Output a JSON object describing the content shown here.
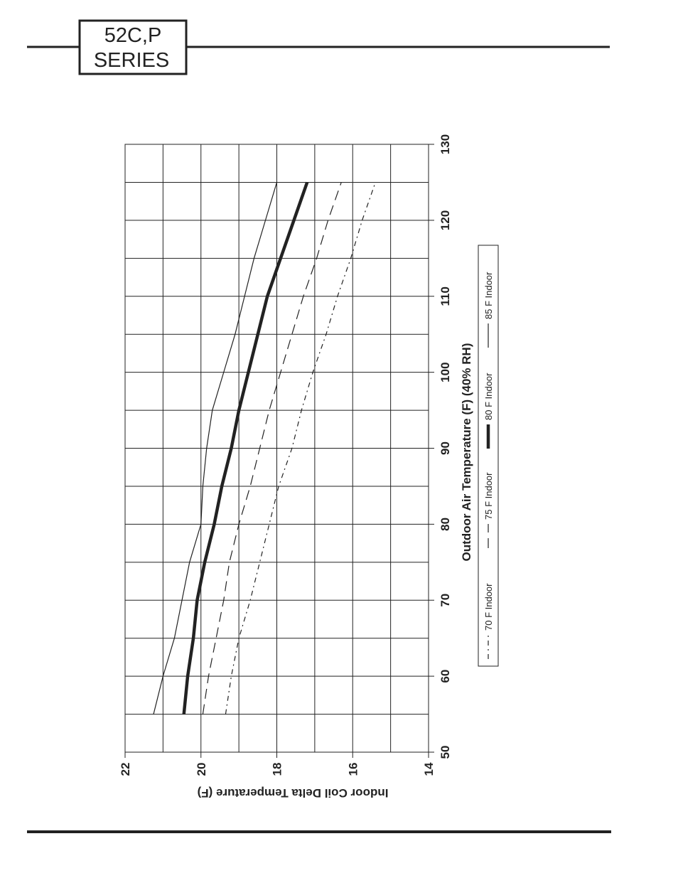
{
  "header": {
    "series_line1": "52C,P",
    "series_line2": "SERIES"
  },
  "chart_data": {
    "type": "line",
    "xlabel": "Outdoor Air Temperature (F) (40% RH)",
    "ylabel": "Indoor Coil Delta Temperature (F)",
    "x": [
      55,
      60,
      65,
      70,
      75,
      80,
      85,
      90,
      95,
      100,
      105,
      110,
      115,
      120,
      125
    ],
    "series": [
      {
        "name": "70 F Indoor",
        "color": "#222222",
        "dash": "7 5 2 5",
        "width": 1.2,
        "values": [
          19.35,
          19.2,
          19.0,
          18.7,
          18.45,
          18.2,
          17.95,
          17.6,
          17.35,
          17.05,
          16.7,
          16.4,
          16.05,
          15.75,
          15.4
        ]
      },
      {
        "name": "75 F Indoor",
        "color": "#222222",
        "dash": "14 8",
        "width": 1.2,
        "values": [
          19.95,
          19.8,
          19.6,
          19.4,
          19.25,
          19.0,
          18.7,
          18.45,
          18.2,
          17.9,
          17.6,
          17.3,
          16.95,
          16.65,
          16.3
        ]
      },
      {
        "name": "80 F Indoor",
        "color": "#222222",
        "dash": "none",
        "width": 4.5,
        "values": [
          20.45,
          20.35,
          20.2,
          20.1,
          19.9,
          19.65,
          19.45,
          19.2,
          19.0,
          18.75,
          18.5,
          18.25,
          17.9,
          17.55,
          17.2
        ]
      },
      {
        "name": "85 F Indoor",
        "color": "#222222",
        "dash": "none",
        "width": 1.2,
        "values": [
          21.25,
          21.0,
          20.7,
          20.5,
          20.3,
          20.0,
          19.95,
          19.85,
          19.7,
          19.4,
          19.1,
          18.85,
          18.6,
          18.3,
          18.0
        ]
      }
    ],
    "xlim": [
      50,
      130
    ],
    "xticks": [
      50,
      60,
      70,
      80,
      90,
      100,
      110,
      120,
      130
    ],
    "xminor": [
      55,
      65,
      75,
      85,
      95,
      105,
      115,
      125
    ],
    "ylim": [
      14,
      22
    ],
    "yticks": [
      14,
      16,
      18,
      20,
      22
    ],
    "yminor": [
      15,
      17,
      19,
      21
    ],
    "yreverse": true,
    "grid": true
  }
}
